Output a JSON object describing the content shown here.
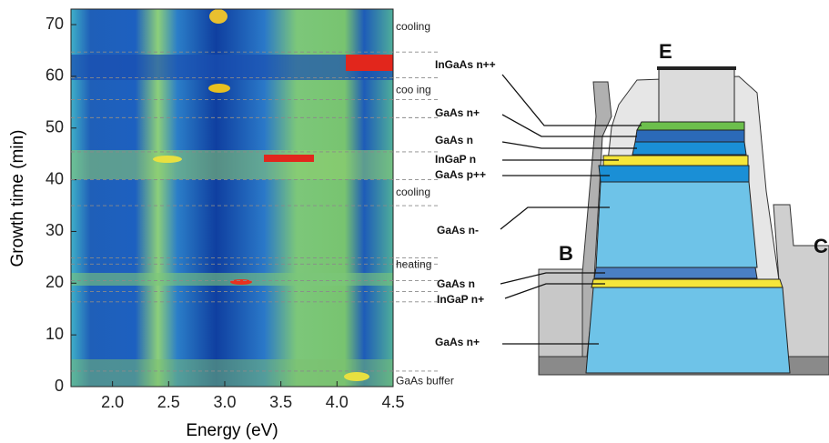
{
  "chart_data": {
    "type": "heatmap",
    "xlabel": "Energy (eV)",
    "ylabel": "Growth time (min)",
    "xlim": [
      1.63,
      4.5
    ],
    "ylim": [
      0,
      73
    ],
    "xticks": [
      {
        "value": 2,
        "label": "2.0"
      },
      2.5,
      {
        "value": 3,
        "label": "3.0"
      },
      3.5,
      {
        "value": 4,
        "label": "4.0"
      },
      4.5
    ],
    "yticks": [
      0,
      10,
      20,
      30,
      40,
      50,
      60,
      70
    ],
    "annotations": [
      {
        "text": "cooling",
        "y": 69.5
      },
      {
        "text": "coo ing",
        "y": 57.3
      },
      {
        "text": "cooling",
        "y": 37.5
      },
      {
        "text": "heating",
        "y": 23.5
      },
      {
        "text": "GaAs buffer",
        "y": 1
      }
    ],
    "dashed_lines": [
      64.7,
      59.7,
      55.5,
      52.0,
      45.4,
      40.0,
      35.0,
      24.9,
      23.7,
      20.5,
      18.4,
      16.4,
      3.0
    ]
  },
  "diagram": {
    "layers": [
      "InGaAs n++",
      "GaAs n+",
      "GaAs n",
      "InGaP n",
      "GaAs p++",
      "GaAs n-",
      "GaAs n",
      "InGaP n+",
      "GaAs n+"
    ],
    "terminals": [
      "E",
      "B",
      "C"
    ]
  }
}
